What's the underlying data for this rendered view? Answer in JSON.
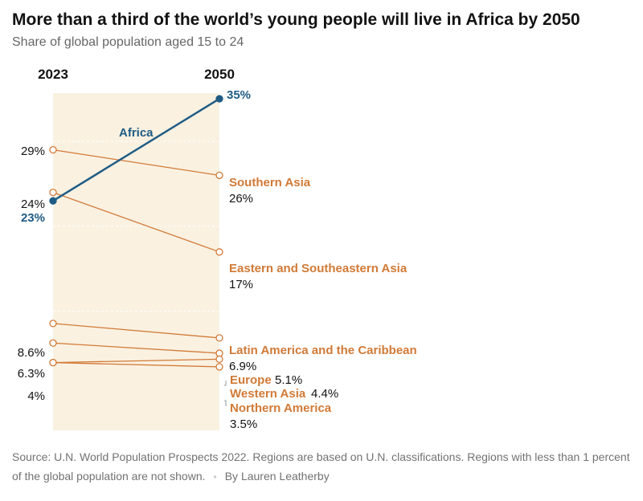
{
  "headline": "More than a third of the world’s young people will live in Africa by 2050",
  "subhead": "Share of global population aged 15 to 24",
  "footer": {
    "source": "Source: U.N. World Population Prospects 2022. Regions are based on U.N. classifications. Regions with less than 1 percent of the global population are not shown.",
    "byline": "By Lauren Leatherby"
  },
  "colors": {
    "africa": "#1f5c85",
    "other": "#d17a37",
    "band": "#faf1e1",
    "text": "#121212"
  },
  "chart_data": {
    "type": "line",
    "x": [
      "2023",
      "2050"
    ],
    "highlight_band": "2023",
    "series": [
      {
        "name": "Africa",
        "values": [
          23,
          35
        ],
        "labels": [
          "23%",
          "35%"
        ],
        "highlight": true
      },
      {
        "name": "Southern Asia",
        "values": [
          29,
          26
        ],
        "labels": [
          "29%",
          "26%"
        ]
      },
      {
        "name": "Eastern and Southeastern Asia",
        "values": [
          24,
          17
        ],
        "labels": [
          "24%",
          "17%"
        ]
      },
      {
        "name": "Latin America and the Caribbean",
        "values": [
          8.6,
          6.9
        ],
        "labels": [
          "8.6%",
          "6.9%"
        ]
      },
      {
        "name": "Europe",
        "values": [
          6.3,
          5.1
        ],
        "labels": [
          "6.3%",
          "5.1%"
        ]
      },
      {
        "name": "Western Asia",
        "values": [
          4.0,
          4.4
        ],
        "labels": [
          "4%",
          "4.4%"
        ]
      },
      {
        "name": "Northern America",
        "values": [
          4.0,
          3.5
        ],
        "labels": [
          "4%",
          "3.5%"
        ]
      }
    ],
    "ylim": [
      0,
      35
    ],
    "grid": true
  }
}
